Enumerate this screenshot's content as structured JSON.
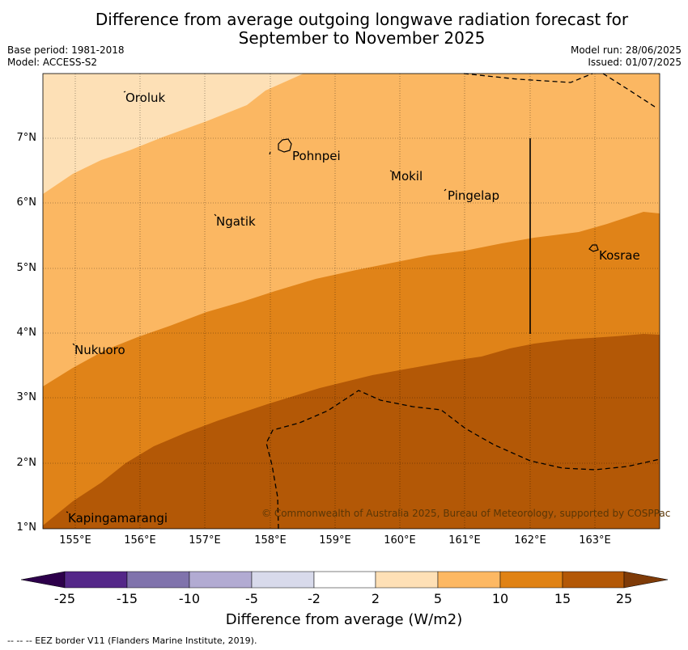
{
  "header": {
    "title_line1": "Difference from average outgoing longwave radiation forecast for",
    "title_line2": "September to November 2025",
    "base_period": "Base period: 1981-2018",
    "model": "Model: ACCESS-S2",
    "model_run": "Model run: 28/06/2025",
    "issued": "Issued: 01/07/2025"
  },
  "map": {
    "lon_range": [
      154.5,
      164.0
    ],
    "lat_range": [
      1.0,
      8.0
    ],
    "grid": true,
    "lat_labels": [
      "1°N",
      "2°N",
      "3°N",
      "4°N",
      "5°N",
      "6°N",
      "7°N"
    ],
    "lon_labels": [
      "155°E",
      "156°E",
      "157°E",
      "158°E",
      "159°E",
      "160°E",
      "161°E",
      "162°E",
      "163°E"
    ],
    "places": [
      {
        "name": "Oroluk",
        "lon": 155.75,
        "lat": 7.7
      },
      {
        "name": "Pohnpei",
        "lon": 158.3,
        "lat": 6.85
      },
      {
        "name": "Mokil",
        "lon": 159.8,
        "lat": 6.5
      },
      {
        "name": "Pingelap",
        "lon": 160.7,
        "lat": 6.2
      },
      {
        "name": "Ngatik",
        "lon": 157.15,
        "lat": 5.8
      },
      {
        "name": "Kosrae",
        "lon": 163.0,
        "lat": 5.3
      },
      {
        "name": "Nukuoro",
        "lon": 154.9,
        "lat": 3.8
      },
      {
        "name": "Kapingamarangi",
        "lon": 154.85,
        "lat": 1.1
      }
    ],
    "copyright": "© Commonwealth of Australia 2025, Bureau of Meteorology, supported by COSPPac",
    "colors": {
      "c2_5": "#fde0b6",
      "c5_10": "#fbb762",
      "c10_15": "#e08318",
      "c15_25": "#b35806"
    }
  },
  "colorbar": {
    "ticks": [
      "-25",
      "-15",
      "-10",
      "-5",
      "-2",
      "2",
      "5",
      "10",
      "15",
      "25"
    ],
    "colors": [
      "#542788",
      "#8073ac",
      "#b2abd2",
      "#d8daeb",
      "#ffffff",
      "#fee0b6",
      "#fdb863",
      "#e08214",
      "#b35806"
    ],
    "extend_low": "#2d004b",
    "extend_high": "#7f3b08",
    "label": "Difference from average (W/m2)"
  },
  "footnote": "--  --  -- EEZ border V11 (Flanders Marine Institute, 2019)."
}
